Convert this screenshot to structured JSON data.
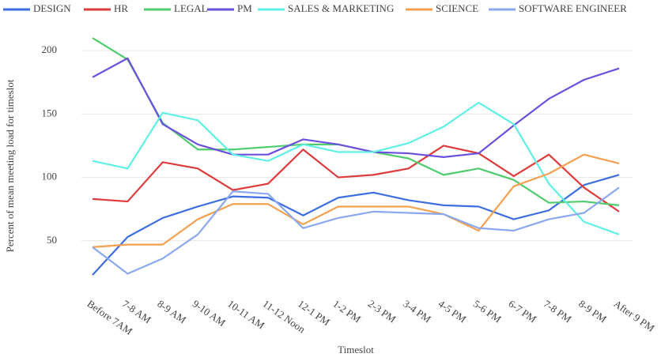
{
  "chart_data": {
    "type": "line",
    "x_label": "Timeslot",
    "y_label": "Percent of mean meeting load for timeslot",
    "categories": [
      "Before 7AM",
      "7-8 AM",
      "8-9 AM",
      "9-10 AM",
      "10-11 AM",
      "11-12 Noon",
      "12-1 PM",
      "1-2 PM",
      "2-3 PM",
      "3-4 PM",
      "4-5 PM",
      "5-6 PM",
      "6-7 PM",
      "7-8 PM",
      "8-9 PM",
      "After 9 PM"
    ],
    "ylim": [
      10,
      220
    ],
    "yticks": [
      50,
      100,
      150,
      200
    ],
    "grid": true,
    "legend": "top",
    "series": [
      {
        "name": "DESIGN",
        "color": "#3d6ee0",
        "values": [
          23,
          53,
          68,
          77,
          85,
          84,
          70,
          84,
          88,
          82,
          78,
          77,
          67,
          74,
          94,
          102
        ]
      },
      {
        "name": "HR",
        "color": "#dd3b3b",
        "values": [
          83,
          81,
          112,
          107,
          90,
          95,
          122,
          100,
          102,
          107,
          125,
          119,
          101,
          118,
          92,
          73
        ]
      },
      {
        "name": "LEGAL",
        "color": "#4fcc6e",
        "values": [
          210,
          193,
          143,
          122,
          122,
          124,
          126,
          126,
          120,
          115,
          102,
          107,
          98,
          80,
          81,
          78
        ]
      },
      {
        "name": "PM",
        "color": "#6b50df",
        "values": [
          179,
          194,
          142,
          126,
          118,
          118,
          130,
          126,
          120,
          119,
          116,
          119,
          141,
          162,
          177,
          186
        ]
      },
      {
        "name": "SALES & MARKETING",
        "color": "#5ef0e4",
        "values": [
          113,
          107,
          151,
          145,
          118,
          113,
          126,
          120,
          120,
          127,
          140,
          159,
          142,
          95,
          65,
          55
        ]
      },
      {
        "name": "SCIENCE",
        "color": "#f4a04f",
        "values": [
          45,
          47,
          47,
          67,
          79,
          79,
          63,
          77,
          77,
          77,
          71,
          58,
          93,
          103,
          118,
          111
        ]
      },
      {
        "name": "SOFTWARE ENGINEER",
        "color": "#8aa8f0",
        "values": [
          45,
          24,
          36,
          55,
          89,
          87,
          60,
          68,
          73,
          72,
          71,
          60,
          58,
          67,
          72,
          92
        ]
      }
    ]
  }
}
